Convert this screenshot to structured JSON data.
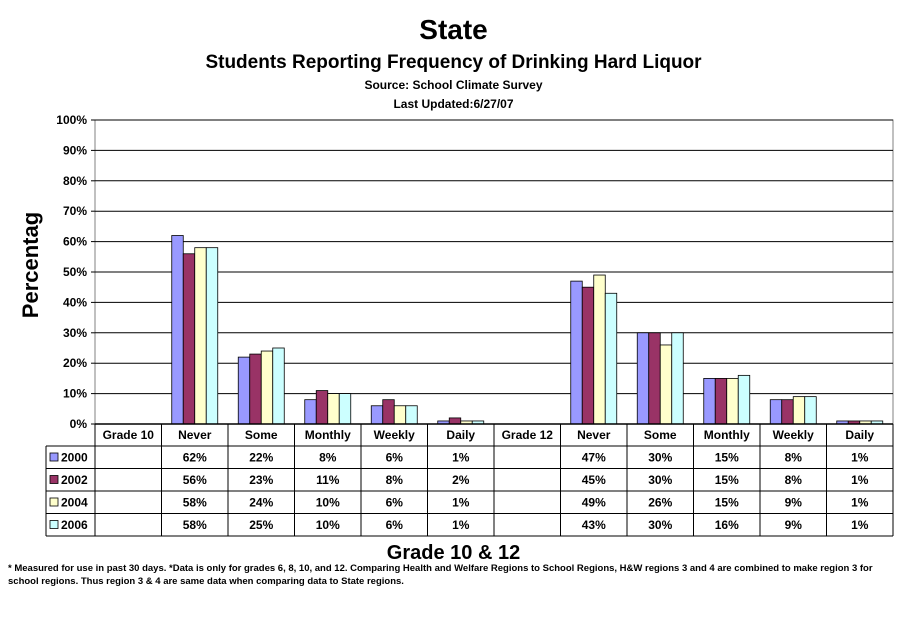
{
  "header": {
    "title": "State",
    "subtitle": "Students Reporting Frequency of Drinking Hard Liquor",
    "source": "Source: School Climate Survey",
    "updated": "Last Updated:6/27/07"
  },
  "footnote": "* Measured for use in past 30 days. *Data is only for grades 6, 8, 10, and 12.  Comparing Health and Welfare Regions to School Regions, H&W regions 3 and 4 are combined to make region 3 for school regions. Thus region 3 & 4 are same data when comparing data to State regions.",
  "chart_data": {
    "type": "bar",
    "title": "State",
    "xlabel": "Grade 10 & 12",
    "ylabel": "Percentag",
    "ylim": [
      0,
      100
    ],
    "yticks": [
      "0%",
      "10%",
      "20%",
      "30%",
      "40%",
      "50%",
      "60%",
      "70%",
      "80%",
      "90%",
      "100%"
    ],
    "grid": true,
    "categories": [
      "Grade 10",
      "Never",
      "Some",
      "Monthly",
      "Weekly",
      "Daily",
      "Grade 12",
      "Never",
      "Some",
      "Monthly",
      "Weekly",
      "Daily"
    ],
    "series": [
      {
        "name": "2000",
        "color": "#9999FF",
        "values": [
          null,
          62,
          22,
          8,
          6,
          1,
          null,
          47,
          30,
          15,
          8,
          1
        ],
        "labels": [
          "",
          "62%",
          "22%",
          "8%",
          "6%",
          "1%",
          "",
          "47%",
          "30%",
          "15%",
          "8%",
          "1%"
        ]
      },
      {
        "name": "2002",
        "color": "#993366",
        "values": [
          null,
          56,
          23,
          11,
          8,
          2,
          null,
          45,
          30,
          15,
          8,
          1
        ],
        "labels": [
          "",
          "56%",
          "23%",
          "11%",
          "8%",
          "2%",
          "",
          "45%",
          "30%",
          "15%",
          "8%",
          "1%"
        ]
      },
      {
        "name": "2004",
        "color": "#FFFFCC",
        "values": [
          null,
          58,
          24,
          10,
          6,
          1,
          null,
          49,
          26,
          15,
          9,
          1
        ],
        "labels": [
          "",
          "58%",
          "24%",
          "10%",
          "6%",
          "1%",
          "",
          "49%",
          "26%",
          "15%",
          "9%",
          "1%"
        ]
      },
      {
        "name": "2006",
        "color": "#CCFFFF",
        "values": [
          null,
          58,
          25,
          10,
          6,
          1,
          null,
          43,
          30,
          16,
          9,
          1
        ],
        "labels": [
          "",
          "58%",
          "25%",
          "10%",
          "6%",
          "1%",
          "",
          "43%",
          "30%",
          "16%",
          "9%",
          "1%"
        ]
      }
    ]
  }
}
